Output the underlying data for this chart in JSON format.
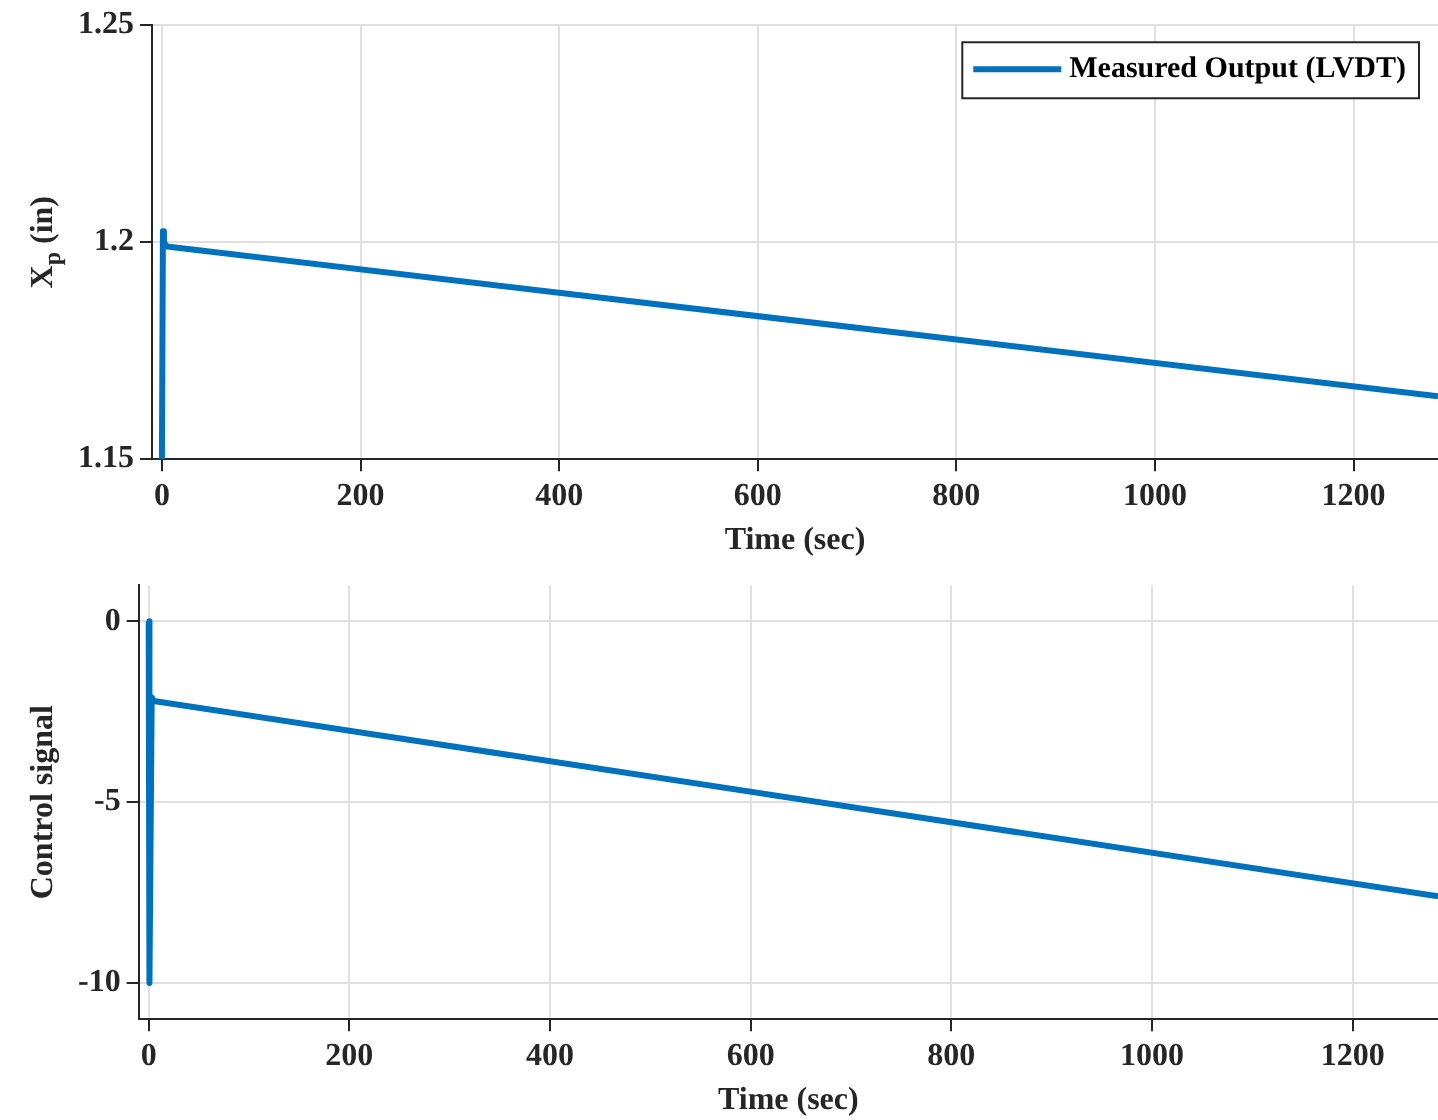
{
  "chart_data": [
    {
      "type": "line",
      "xlabel": "Time (sec)",
      "ylabel": "X$_{p}$ (in)",
      "xlim": [
        -10,
        1285
      ],
      "xticks": [
        0,
        200,
        400,
        600,
        800,
        1000,
        1200
      ],
      "ylim": [
        1.15,
        1.25
      ],
      "yticks": [
        1.15,
        1.2,
        1.25
      ],
      "grid": true,
      "legend": "top right",
      "line_style": "solid",
      "series": [
        {
          "name": "Measured Output (LVDT)",
          "color": "#0072bd",
          "x": [
            0,
            1,
            2,
            5,
            1285
          ],
          "values": [
            1.15,
            1.2025,
            1.2,
            1.199,
            1.1645
          ]
        }
      ]
    },
    {
      "type": "line",
      "xlabel": "Time (sec)",
      "ylabel": "Control signal",
      "xlim": [
        -10,
        1285
      ],
      "xticks": [
        0,
        200,
        400,
        600,
        800,
        1000,
        1200
      ],
      "ylim": [
        -11,
        1
      ],
      "yticks": [
        -10,
        -5,
        0
      ],
      "grid": true,
      "line_style": "solid",
      "series": [
        {
          "color": "#0072bd",
          "x": [
            0,
            0.5,
            1,
            3,
            5,
            1285
          ],
          "values": [
            0,
            -10,
            -10,
            -2.1,
            -2.2,
            -7.6
          ]
        }
      ]
    }
  ]
}
